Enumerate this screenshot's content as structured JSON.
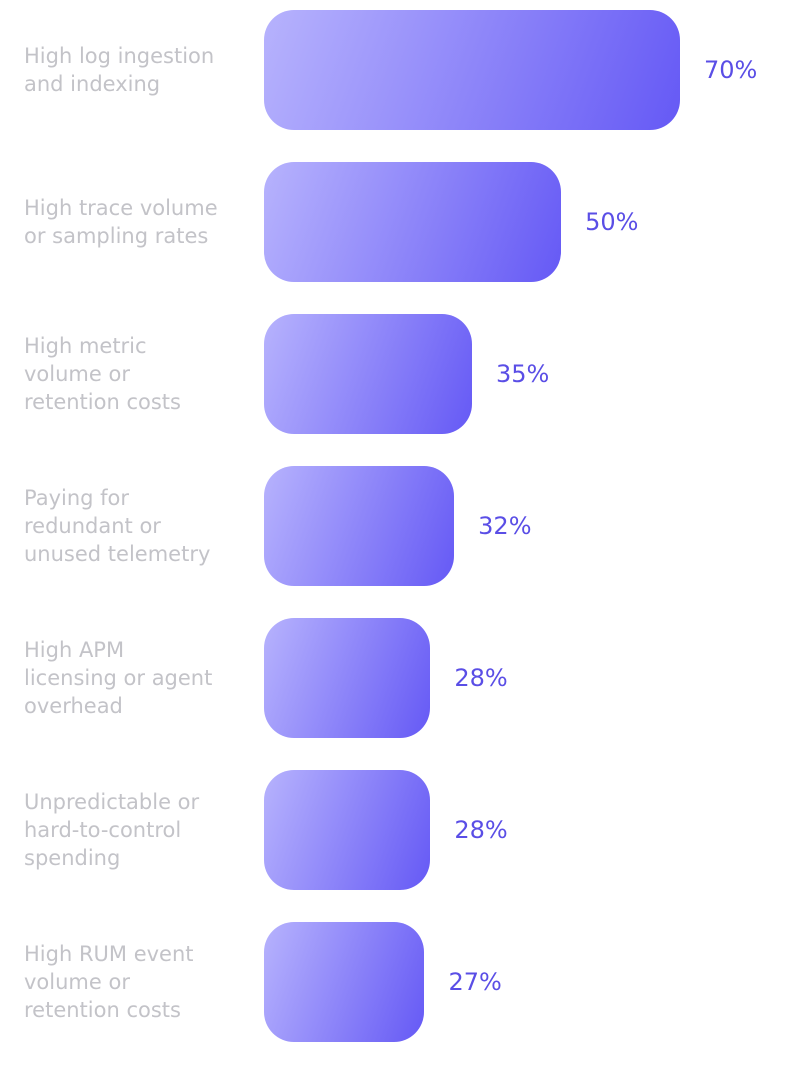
{
  "chart_data": {
    "type": "bar",
    "orientation": "horizontal",
    "categories": [
      "High log ingestion\nand indexing",
      "High trace volume\nor sampling rates",
      "High metric\nvolume or\nretention costs",
      "Paying for\nredundant or\nunused telemetry",
      "High APM\nlicensing or agent\noverhead",
      "Unpredictable or\nhard-to-control\nspending",
      "High RUM event\nvolume or\nretention costs"
    ],
    "values": [
      70,
      50,
      35,
      32,
      28,
      28,
      27
    ],
    "value_labels": [
      "70%",
      "50%",
      "35%",
      "32%",
      "28%",
      "28%",
      "27%"
    ],
    "colors": [
      "#b7b3fd",
      "#6559f5"
    ]
  }
}
